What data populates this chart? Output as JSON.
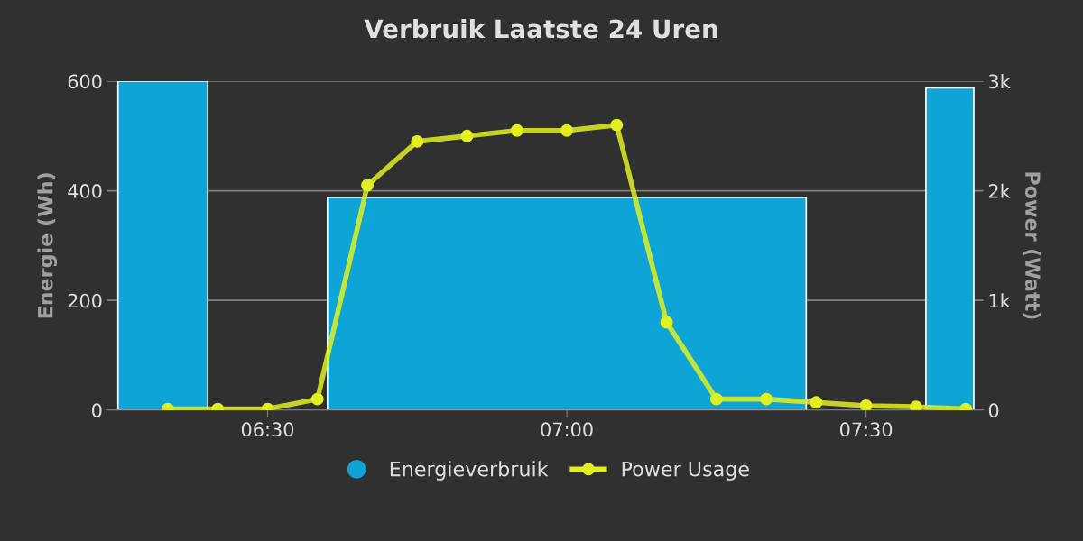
{
  "chart_data": {
    "type": "histogram",
    "title": "Verbruik Laatste 24 Uren",
    "ylabel": "Energie (Wh)",
    "y2label": "Power (Watt)",
    "series": [
      {
        "name": "Energieverbruik",
        "color": "#0ea5d6",
        "bins": [
          6.25,
          6.4,
          6.6,
          7.4,
          7.6,
          7.68
        ],
        "values": [
          600,
          null,
          388,
          null,
          588
        ]
      },
      {
        "name": "Power Usage",
        "type": "line",
        "axis": "y2",
        "color": "#e2f020",
        "marker": "circle",
        "x": [
          6.3333,
          6.4167,
          6.5,
          6.5833,
          6.6667,
          6.75,
          6.8333,
          6.9167,
          7.0,
          7.0833,
          7.1667,
          7.25,
          7.3333,
          7.4167,
          7.5,
          7.5833,
          7.6667
        ],
        "values": [
          10,
          10,
          10,
          100,
          2050,
          2450,
          2500,
          2550,
          2550,
          2600,
          800,
          100,
          100,
          70,
          40,
          30,
          10
        ]
      }
    ],
    "xlim": [
      6.232,
      7.696
    ],
    "xticks": [
      {
        "value": 6.5,
        "label": "06:30"
      },
      {
        "value": 7.0,
        "label": "07:00"
      },
      {
        "value": 7.5,
        "label": "07:30"
      }
    ],
    "ylim": [
      0,
      600
    ],
    "yticks": [
      0,
      200,
      400,
      600
    ],
    "y2lim": [
      0,
      3000
    ],
    "y2ticks": [
      0,
      {
        "value": 1000,
        "label": "1k"
      },
      {
        "value": 2000,
        "label": "2k"
      },
      {
        "value": 3000,
        "label": "3k"
      }
    ],
    "grid": "y",
    "legend": "bottom"
  }
}
